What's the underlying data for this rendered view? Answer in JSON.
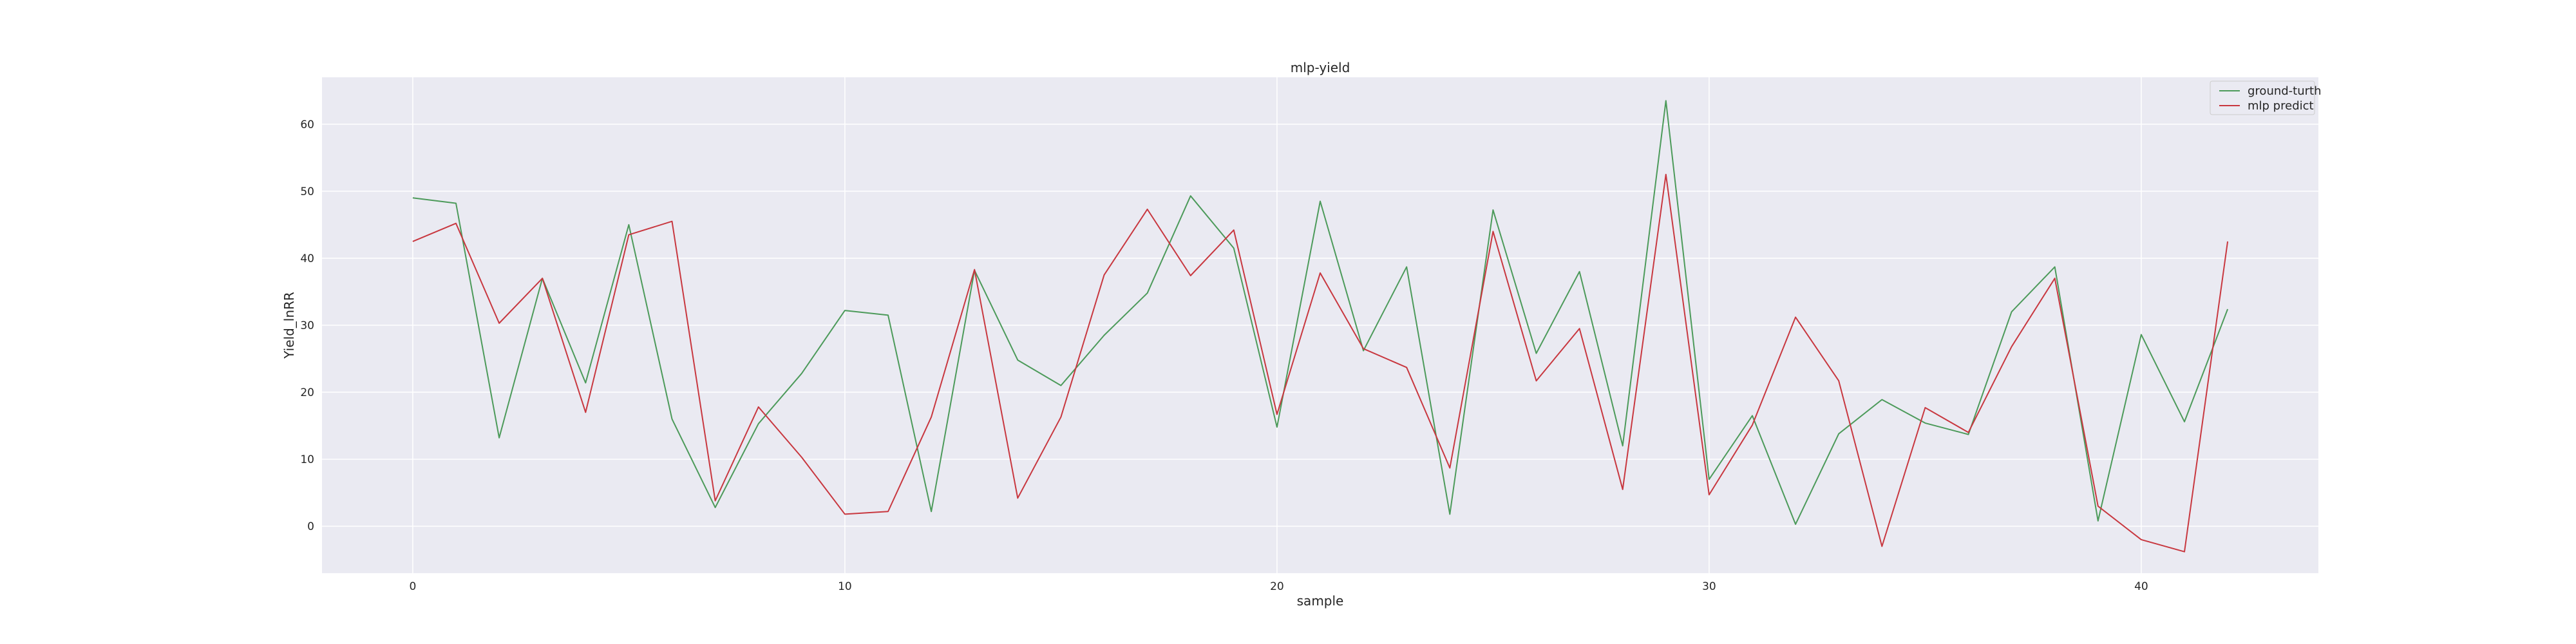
{
  "chart_data": {
    "type": "line",
    "title": "mlp-yield",
    "xlabel": "sample",
    "ylabel": "Yield_lnRR",
    "xlim": [
      -2.1,
      44.1
    ],
    "ylim": [
      -7,
      67
    ],
    "xticks": [
      0,
      10,
      20,
      30,
      40
    ],
    "yticks": [
      0,
      10,
      20,
      30,
      40,
      50,
      60
    ],
    "grid": true,
    "legend_position": "top-right",
    "x": [
      0,
      1,
      2,
      3,
      4,
      5,
      6,
      7,
      8,
      9,
      10,
      11,
      12,
      13,
      14,
      15,
      16,
      17,
      18,
      19,
      20,
      21,
      22,
      23,
      24,
      25,
      26,
      27,
      28,
      29,
      30,
      31,
      32,
      33,
      34,
      35,
      36,
      37,
      38,
      39,
      40,
      41,
      42
    ],
    "series": [
      {
        "name": "ground-turth",
        "color": "#4c9a5a",
        "values": [
          49,
          48.2,
          13.2,
          37,
          21.4,
          45,
          16,
          2.8,
          15.3,
          22.8,
          32.2,
          31.5,
          2.2,
          38.2,
          24.8,
          21,
          28.5,
          34.8,
          49.3,
          41.5,
          14.8,
          48.5,
          26.2,
          38.7,
          1.8,
          47.2,
          25.8,
          38,
          12,
          63.5,
          7,
          16.5,
          0.3,
          13.8,
          18.9,
          15.4,
          13.7,
          32,
          38.7,
          0.8,
          28.6,
          15.6,
          32.4
        ]
      },
      {
        "name": "mlp predict",
        "color": "#c8373f",
        "values": [
          42.5,
          45.2,
          30.3,
          37,
          17,
          43.5,
          45.5,
          3.8,
          17.8,
          10.3,
          1.8,
          2.2,
          16.3,
          38.3,
          4.2,
          16.3,
          37.5,
          47.3,
          37.4,
          44.2,
          16.7,
          37.8,
          26.5,
          23.7,
          8.7,
          44,
          21.7,
          29.5,
          5.5,
          52.5,
          4.7,
          15.1,
          31.2,
          21.7,
          -3,
          17.7,
          14,
          26.8,
          37,
          3,
          -2,
          -3.8,
          42.5
        ]
      }
    ]
  }
}
